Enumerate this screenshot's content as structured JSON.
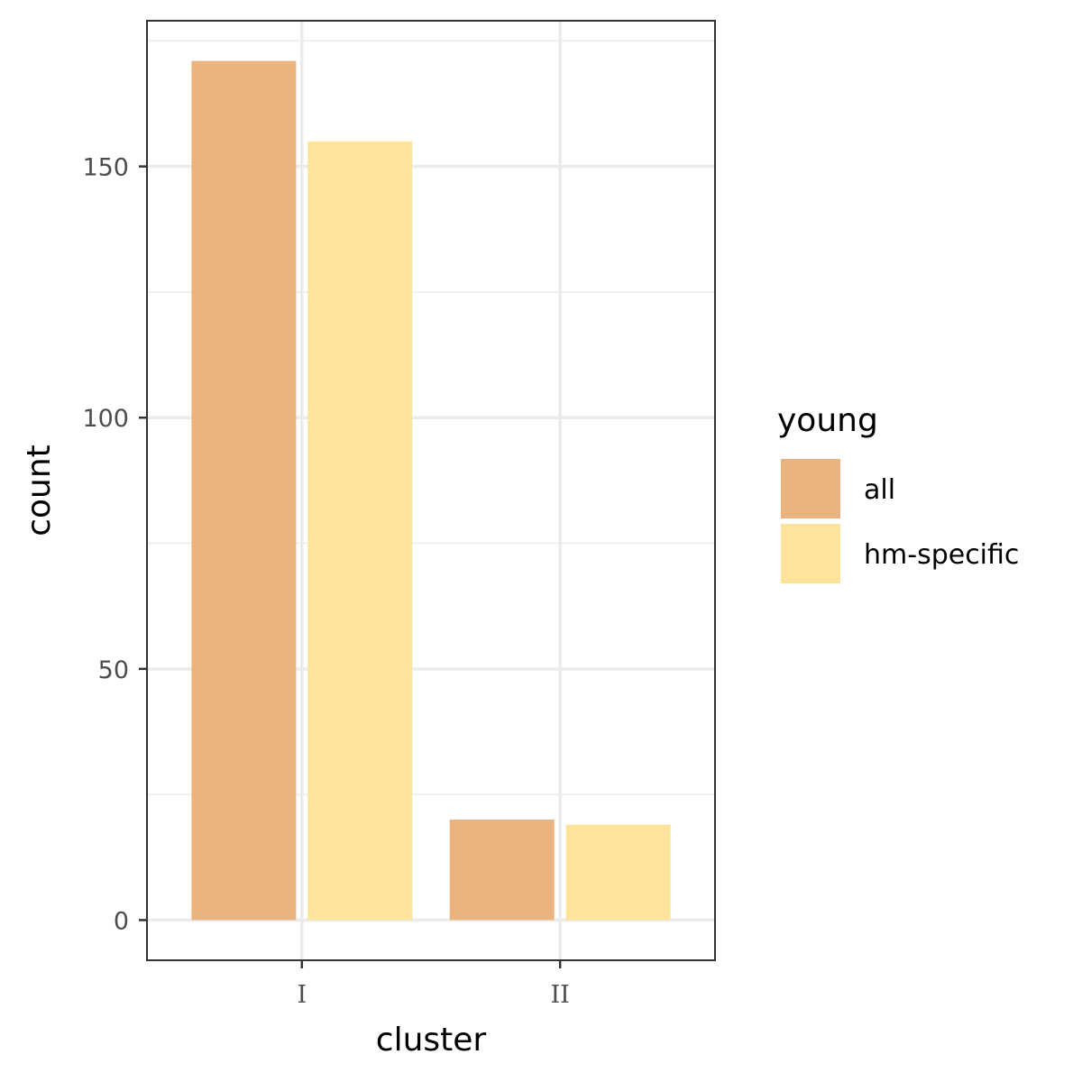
{
  "chart_data": {
    "type": "bar",
    "categories": [
      "I",
      "II"
    ],
    "series": [
      {
        "name": "all",
        "values": [
          171,
          20
        ],
        "color": "#EBB47F"
      },
      {
        "name": "hm-specific",
        "values": [
          155,
          19
        ],
        "color": "#FEE49B"
      }
    ],
    "xlabel": "cluster",
    "ylabel": "count",
    "ylim": [
      -8,
      179
    ],
    "yticks": [
      0,
      50,
      100,
      150
    ],
    "grid": true,
    "legend": {
      "title": "young",
      "position": "right"
    }
  }
}
